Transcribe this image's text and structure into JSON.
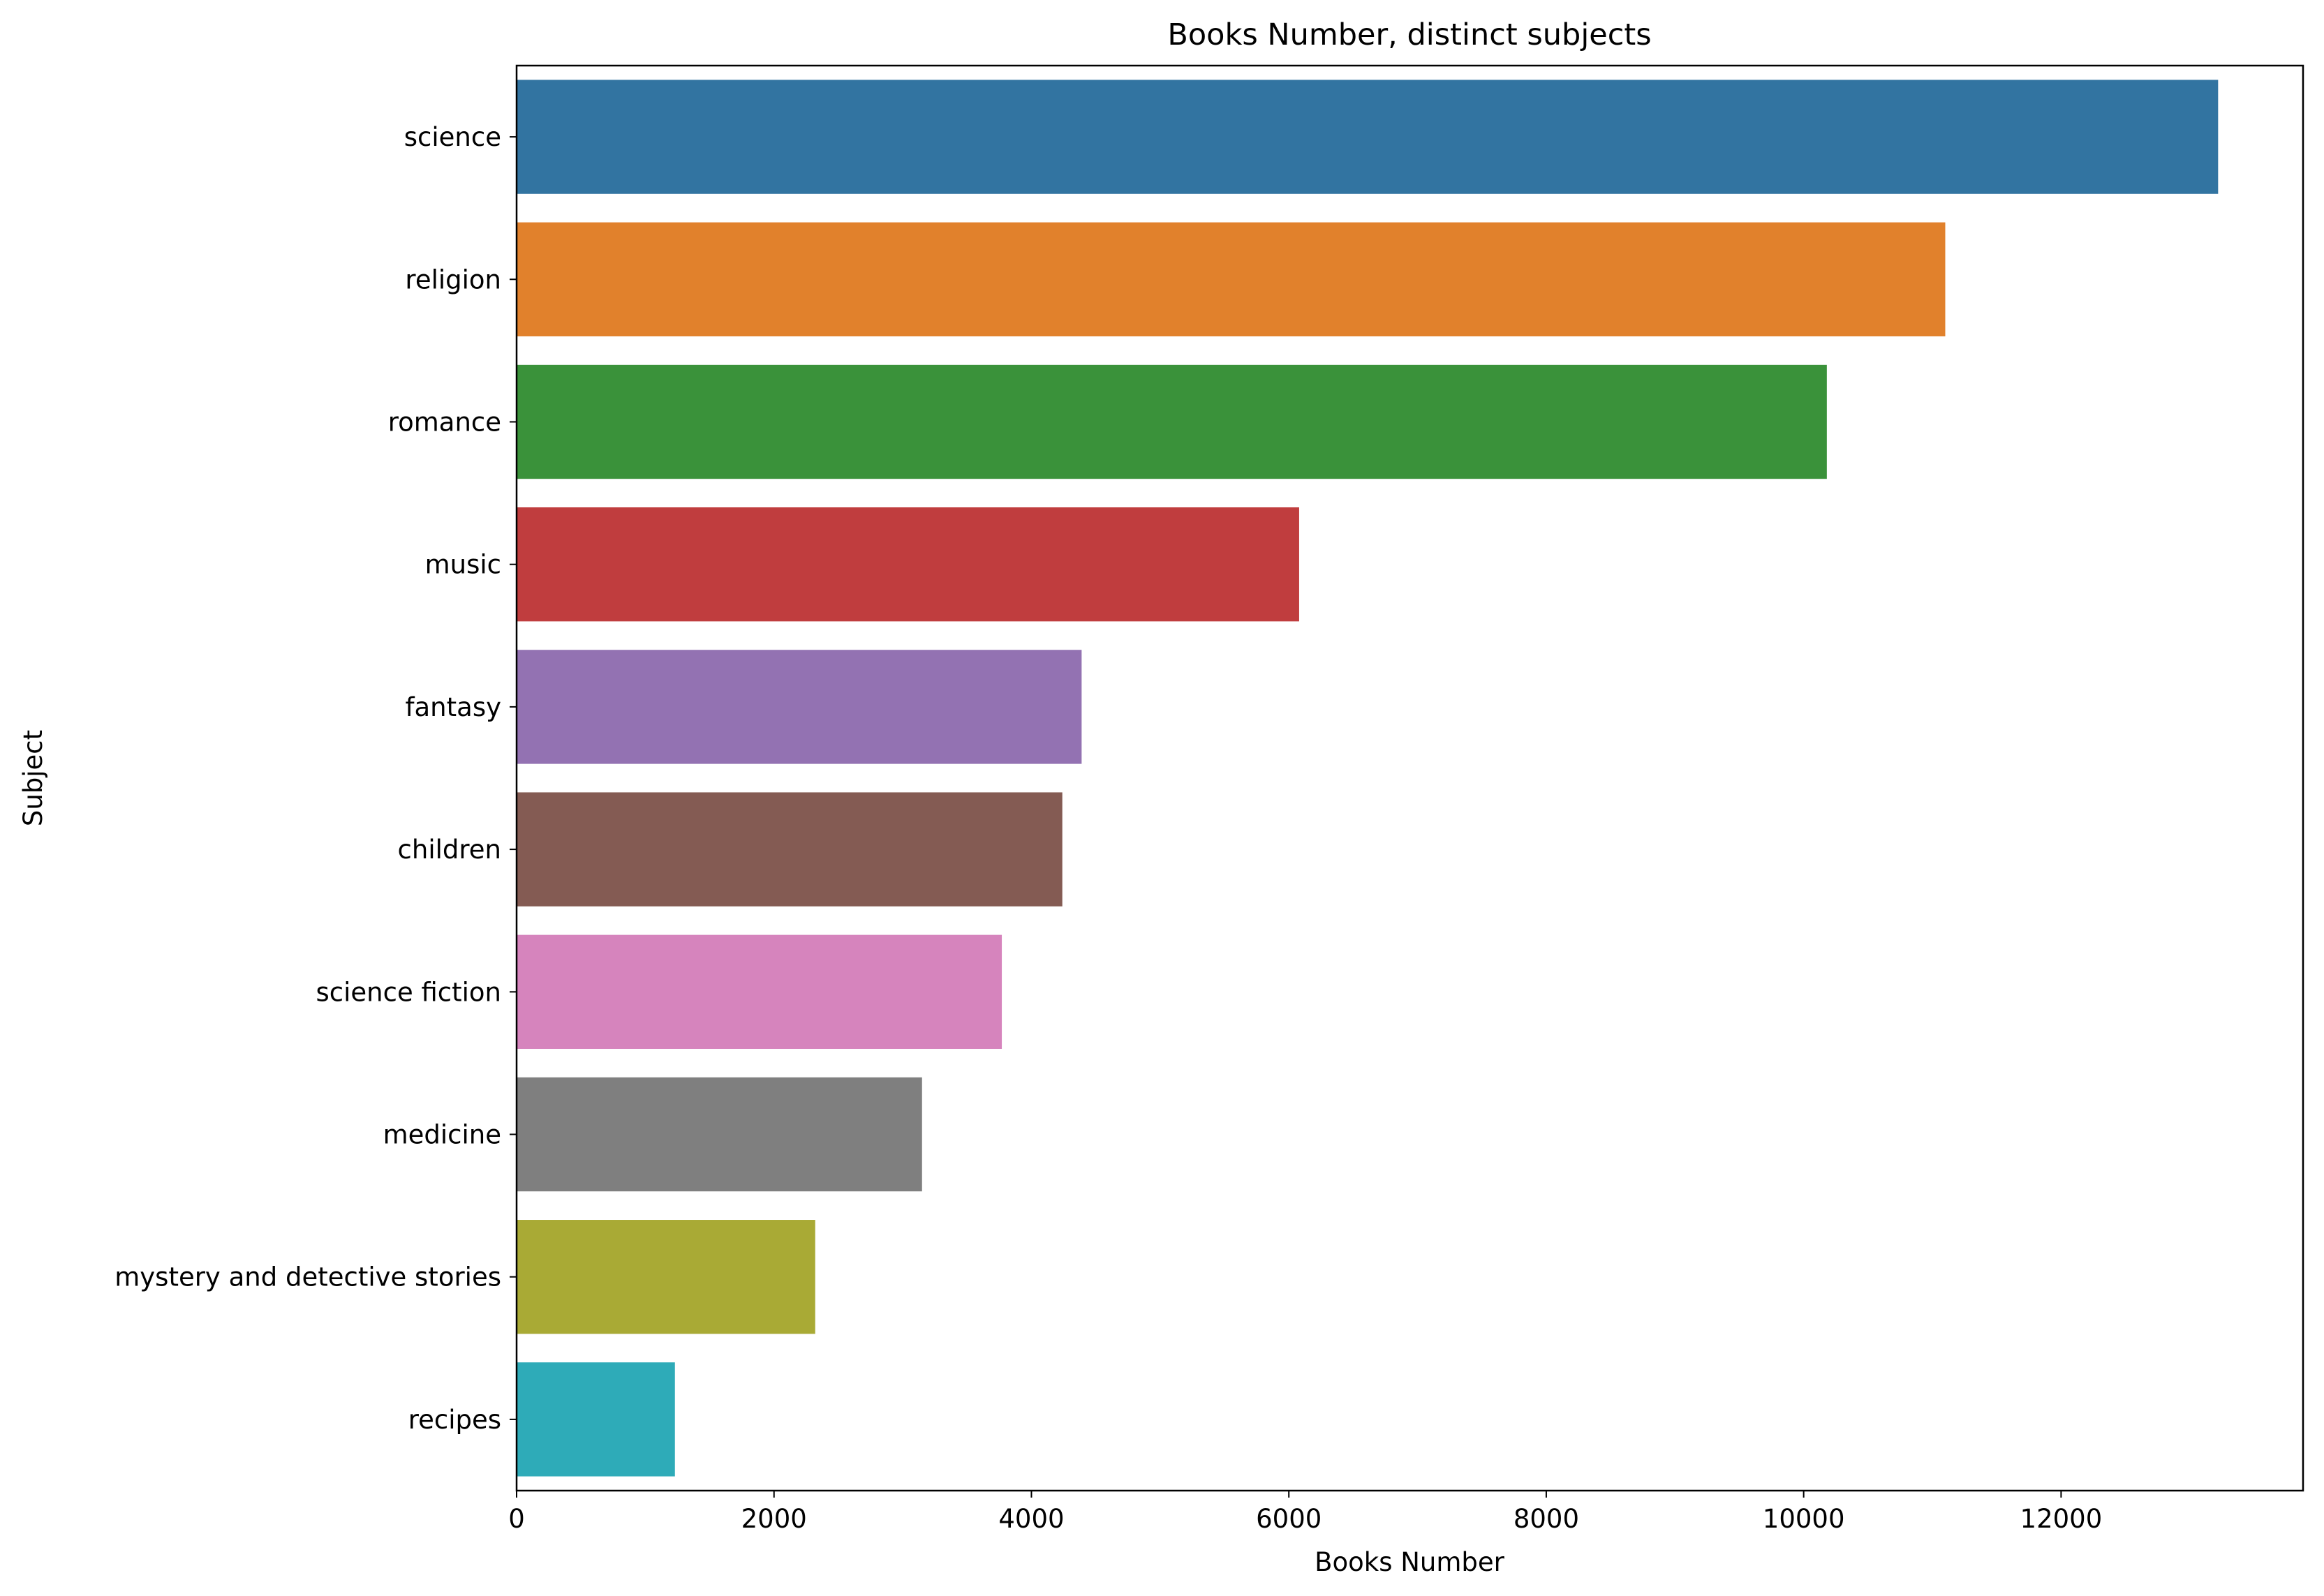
{
  "chart_data": {
    "type": "bar",
    "orientation": "horizontal",
    "title": "Books Number, distinct subjects",
    "xlabel": "Books Number",
    "ylabel": "Subject",
    "categories": [
      "science",
      "religion",
      "romance",
      "music",
      "fantasy",
      "children",
      "science fiction",
      "medicine",
      "mystery and detective stories",
      "recipes"
    ],
    "values": [
      13220,
      11100,
      10180,
      6080,
      4390,
      4240,
      3770,
      3150,
      2320,
      1230
    ],
    "colors": [
      "#3274a1",
      "#e1812c",
      "#3a923a",
      "#c03d3e",
      "#9372b2",
      "#845b53",
      "#d684bd",
      "#7f7f7f",
      "#a9aa35",
      "#2eabb8"
    ],
    "xticks": [
      0,
      2000,
      4000,
      6000,
      8000,
      10000,
      12000
    ],
    "xlim": [
      0,
      13880
    ],
    "grid": false,
    "legend": "none"
  }
}
